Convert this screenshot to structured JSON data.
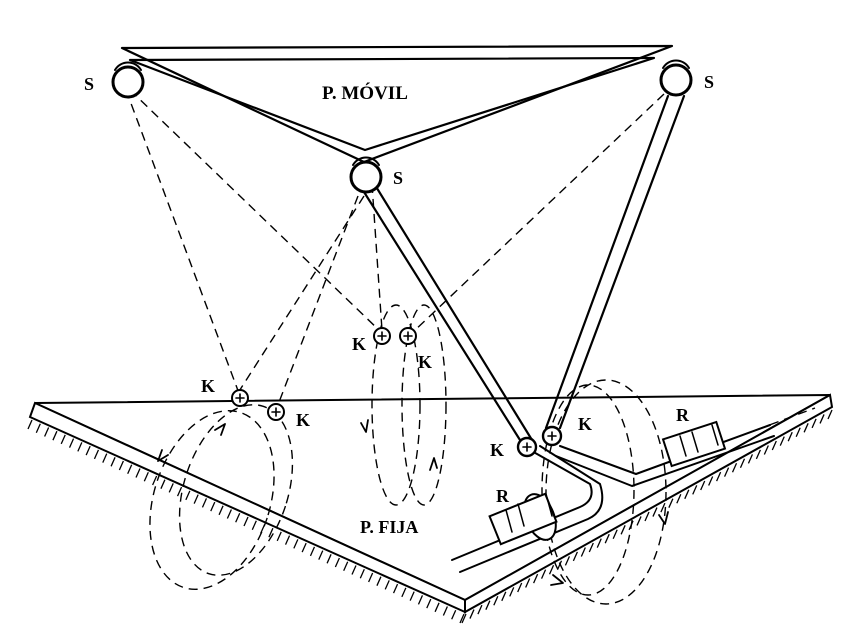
{
  "labels": {
    "moving_platform": "P. MÓVIL",
    "fixed_platform": "P. FIJA",
    "spherical_joint": "S",
    "cardan_joint": "K",
    "revolute_joint": "R"
  },
  "colors": {
    "ink": "#000000",
    "paper": "#ffffff"
  }
}
